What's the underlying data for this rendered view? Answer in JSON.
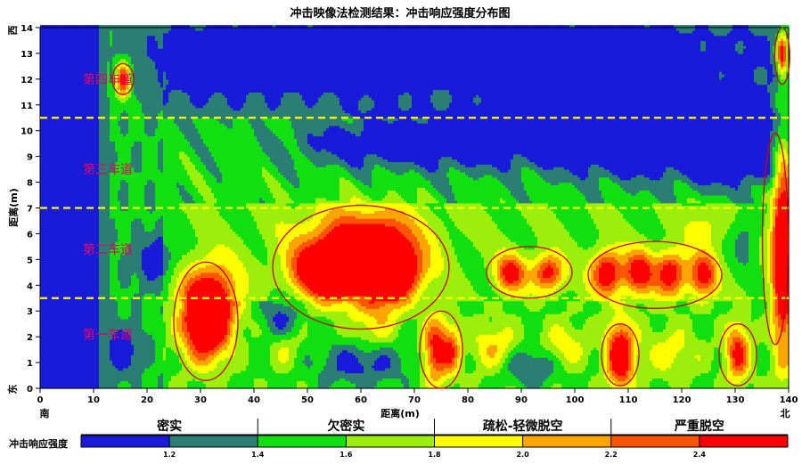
{
  "chart_data": {
    "type": "heatmap",
    "title": "冲击映像法检测结果：冲击响应强度分布图",
    "xlabel": "距离(m)",
    "ylabel": "距离(m)",
    "xlim": [
      0,
      140
    ],
    "ylim": [
      0,
      14
    ],
    "x_ticks": [
      "0",
      "10",
      "20",
      "30",
      "40",
      "50",
      "60",
      "70",
      "80",
      "90",
      "100",
      "110",
      "120",
      "130",
      "140"
    ],
    "y_ticks": [
      "0",
      "1",
      "2",
      "3",
      "4",
      "5",
      "6",
      "7",
      "8",
      "9",
      "10",
      "11",
      "12",
      "13",
      "14"
    ],
    "x_end_labels": {
      "left": "南",
      "right": "北"
    },
    "y_end_labels": {
      "top": "西",
      "bottom": "东"
    },
    "lane_lines_y": [
      3.5,
      7.0,
      10.5
    ],
    "lane_labels": [
      {
        "text": "第一车道",
        "x": 8,
        "y": 2.1
      },
      {
        "text": "第二车道",
        "x": 8,
        "y": 5.4
      },
      {
        "text": "第三车道",
        "x": 8,
        "y": 8.5
      },
      {
        "text": "第四车道",
        "x": 8,
        "y": 12.0
      }
    ],
    "anomaly_ellipses": [
      {
        "cx": 15.5,
        "cy": 12.0,
        "rx": 2.0,
        "ry": 0.6
      },
      {
        "cx": 31.0,
        "cy": 2.6,
        "rx": 6.0,
        "ry": 2.3
      },
      {
        "cx": 60.0,
        "cy": 4.7,
        "rx": 16.5,
        "ry": 2.4
      },
      {
        "cx": 91.5,
        "cy": 4.5,
        "rx": 8.0,
        "ry": 1.0
      },
      {
        "cx": 115.0,
        "cy": 4.4,
        "rx": 12.5,
        "ry": 1.3
      },
      {
        "cx": 75.0,
        "cy": 1.5,
        "rx": 4.0,
        "ry": 1.5
      },
      {
        "cx": 108.5,
        "cy": 1.3,
        "rx": 3.5,
        "ry": 1.2
      },
      {
        "cx": 130.5,
        "cy": 1.3,
        "rx": 3.5,
        "ry": 1.2
      },
      {
        "cx": 137.5,
        "cy": 5.8,
        "rx": 2.4,
        "ry": 4.1
      },
      {
        "cx": 138.8,
        "cy": 12.9,
        "rx": 1.4,
        "ry": 1.1
      }
    ],
    "hotspots": [
      {
        "cx": 31,
        "cy": 2.5,
        "sx": 3.0,
        "sy": 1.0,
        "a": 1.4
      },
      {
        "cx": 32,
        "cy": 3.6,
        "sx": 3.5,
        "sy": 1.0,
        "a": 0.8
      },
      {
        "cx": 57,
        "cy": 4.6,
        "sx": 4.0,
        "sy": 0.8,
        "a": 1.25
      },
      {
        "cx": 64,
        "cy": 4.6,
        "sx": 3.0,
        "sy": 1.0,
        "a": 1.35
      },
      {
        "cx": 52,
        "cy": 4.5,
        "sx": 4.0,
        "sy": 0.7,
        "a": 0.9
      },
      {
        "cx": 60,
        "cy": 5.8,
        "sx": 8.0,
        "sy": 0.9,
        "a": 0.8
      },
      {
        "cx": 68,
        "cy": 4.5,
        "sx": 3.0,
        "sy": 0.7,
        "a": 0.85
      },
      {
        "cx": 88,
        "cy": 4.5,
        "sx": 2.0,
        "sy": 0.5,
        "a": 0.95
      },
      {
        "cx": 95,
        "cy": 4.5,
        "sx": 2.0,
        "sy": 0.5,
        "a": 1.0
      },
      {
        "cx": 106,
        "cy": 4.5,
        "sx": 2.0,
        "sy": 0.6,
        "a": 1.15
      },
      {
        "cx": 112,
        "cy": 4.5,
        "sx": 2.0,
        "sy": 0.6,
        "a": 1.0
      },
      {
        "cx": 118,
        "cy": 4.5,
        "sx": 2.0,
        "sy": 0.6,
        "a": 1.05
      },
      {
        "cx": 124,
        "cy": 4.4,
        "sx": 1.8,
        "sy": 0.6,
        "a": 0.95
      },
      {
        "cx": 74,
        "cy": 1.5,
        "sx": 1.6,
        "sy": 0.9,
        "a": 1.0
      },
      {
        "cx": 77,
        "cy": 1.5,
        "sx": 1.2,
        "sy": 0.7,
        "a": 0.7
      },
      {
        "cx": 108.5,
        "cy": 1.3,
        "sx": 1.8,
        "sy": 0.9,
        "a": 1.3
      },
      {
        "cx": 130.5,
        "cy": 1.4,
        "sx": 1.6,
        "sy": 0.8,
        "a": 0.95
      },
      {
        "cx": 139,
        "cy": 5.5,
        "sx": 1.5,
        "sy": 3.0,
        "a": 1.4
      },
      {
        "cx": 138.8,
        "cy": 13.0,
        "sx": 0.7,
        "sy": 0.6,
        "a": 1.25
      },
      {
        "cx": 15.5,
        "cy": 12.0,
        "sx": 1.0,
        "sy": 0.5,
        "a": 1.1
      },
      {
        "cx": 85,
        "cy": 1.5,
        "sx": 3.0,
        "sy": 0.7,
        "a": 0.5
      },
      {
        "cx": 98,
        "cy": 1.5,
        "sx": 3.0,
        "sy": 0.7,
        "a": 0.45
      },
      {
        "cx": 118,
        "cy": 1.4,
        "sx": 4.0,
        "sy": 0.7,
        "a": 0.35
      },
      {
        "cx": 46,
        "cy": 1.5,
        "sx": 2.0,
        "sy": 0.5,
        "a": 0.3
      },
      {
        "cx": 62,
        "cy": 2.3,
        "sx": 3.0,
        "sy": 0.6,
        "a": 0.3
      },
      {
        "cx": 125,
        "cy": 6.4,
        "sx": 3.0,
        "sy": 0.6,
        "a": 0.3
      }
    ],
    "cold_spots": [
      {
        "cx": 110,
        "cy": 9.8,
        "sx": 10.0,
        "sy": 1.0,
        "a": 0.9
      },
      {
        "cx": 130,
        "cy": 9.5,
        "sx": 7.0,
        "sy": 1.0,
        "a": 0.9
      },
      {
        "cx": 82,
        "cy": 9.7,
        "sx": 12.0,
        "sy": 0.8,
        "a": 0.6
      },
      {
        "cx": 60,
        "cy": 9.5,
        "sx": 10.0,
        "sy": 0.6,
        "a": 0.4
      },
      {
        "cx": 80,
        "cy": 13.2,
        "sx": 35.0,
        "sy": 0.9,
        "a": 0.5
      },
      {
        "cx": 105,
        "cy": 12.0,
        "sx": 18.0,
        "sy": 1.0,
        "a": 0.35
      },
      {
        "cx": 55,
        "cy": 12.5,
        "sx": 10.0,
        "sy": 1.0,
        "a": 0.35
      },
      {
        "cx": 30,
        "cy": 12.5,
        "sx": 6.0,
        "sy": 1.2,
        "a": 0.35
      },
      {
        "cx": 60,
        "cy": 1.0,
        "sx": 6.0,
        "sy": 0.6,
        "a": 0.45
      },
      {
        "cx": 92,
        "cy": 0.9,
        "sx": 5.0,
        "sy": 0.5,
        "a": 0.45
      },
      {
        "cx": 15,
        "cy": 1.5,
        "sx": 2.0,
        "sy": 0.6,
        "a": 0.5
      },
      {
        "cx": 22,
        "cy": 5.0,
        "sx": 2.5,
        "sy": 0.6,
        "a": 0.5
      },
      {
        "cx": 45,
        "cy": 2.8,
        "sx": 2.5,
        "sy": 0.6,
        "a": 0.4
      },
      {
        "cx": 132,
        "cy": 6.0,
        "sx": 2.0,
        "sy": 0.8,
        "a": 0.3
      }
    ],
    "color_scale": [
      {
        "min": 1.0,
        "max": 1.2,
        "color": "#1a1ad9"
      },
      {
        "min": 1.2,
        "max": 1.4,
        "color": "#2a7e74"
      },
      {
        "min": 1.4,
        "max": 1.6,
        "color": "#10e010"
      },
      {
        "min": 1.6,
        "max": 1.8,
        "color": "#9cef0a"
      },
      {
        "min": 1.8,
        "max": 2.0,
        "color": "#ffff00"
      },
      {
        "min": 2.0,
        "max": 2.2,
        "color": "#ffa500"
      },
      {
        "min": 2.2,
        "max": 2.4,
        "color": "#ff5500"
      },
      {
        "min": 2.4,
        "max": 2.6,
        "color": "#ff0000"
      }
    ],
    "colorbar_title": "冲击响应强度",
    "colorbar_ticks": [
      "1.2",
      "1.4",
      "1.6",
      "1.8",
      "2.0",
      "2.2",
      "2.4"
    ],
    "category_labels": [
      "密实",
      "欠密实",
      "疏松-轻微脱空",
      "严重脱空"
    ],
    "category_bounds": [
      1.0,
      1.4,
      1.8,
      2.2,
      2.6
    ]
  },
  "colors": {
    "lane_line": "#ffff00",
    "ellipse": "#cc0000",
    "lane_label": "#e0006a"
  }
}
